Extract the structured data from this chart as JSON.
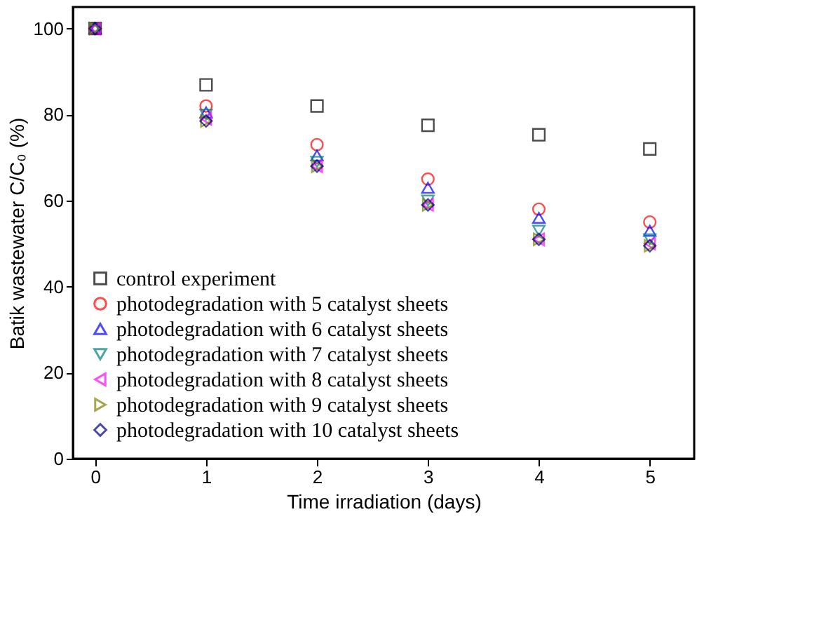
{
  "chart_data": {
    "type": "scatter",
    "xlabel": "Time irradiation (days)",
    "ylabel": "Batik wastewater C/C₀ (%)",
    "x": [
      0,
      1,
      2,
      3,
      4,
      5
    ],
    "series": [
      {
        "name": "control experiment",
        "color": "#000000",
        "marker": "square",
        "values": [
          100,
          86.9,
          82,
          77.5,
          75.3,
          72
        ]
      },
      {
        "name": "photodegradation with 5 catalyst sheets",
        "color": "#ff0000",
        "marker": "circle",
        "values": [
          100,
          82,
          73,
          65,
          58,
          55
        ]
      },
      {
        "name": "photodegradation with 6 catalyst sheets",
        "color": "#0000ff",
        "marker": "triangle-up",
        "values": [
          100,
          80.5,
          70.5,
          63,
          56,
          53
        ]
      },
      {
        "name": "photodegradation with 7 catalyst sheets",
        "color": "#008080",
        "marker": "triangle-down",
        "values": [
          100,
          80,
          69,
          60,
          53,
          51
        ]
      },
      {
        "name": "photodegradation with 8 catalyst sheets",
        "color": "#ff00ff",
        "marker": "triangle-left",
        "values": [
          100,
          79,
          68,
          59,
          51,
          50
        ]
      },
      {
        "name": "photodegradation with 9 catalyst sheets",
        "color": "#808000",
        "marker": "triangle-right",
        "values": [
          100,
          78.5,
          68,
          59,
          51,
          49.5
        ]
      },
      {
        "name": "photodegradation with 10 catalyst sheets",
        "color": "#000080",
        "marker": "diamond",
        "values": [
          100,
          78.5,
          68,
          59,
          51,
          49.5
        ]
      }
    ],
    "xlim": [
      -0.2,
      5.4
    ],
    "xticks": [
      0,
      1,
      2,
      3,
      4,
      5
    ],
    "ylim": [
      0,
      105
    ],
    "yticks": [
      0,
      20,
      40,
      60,
      80,
      100
    ],
    "grid": false,
    "legend": "bottom left"
  }
}
